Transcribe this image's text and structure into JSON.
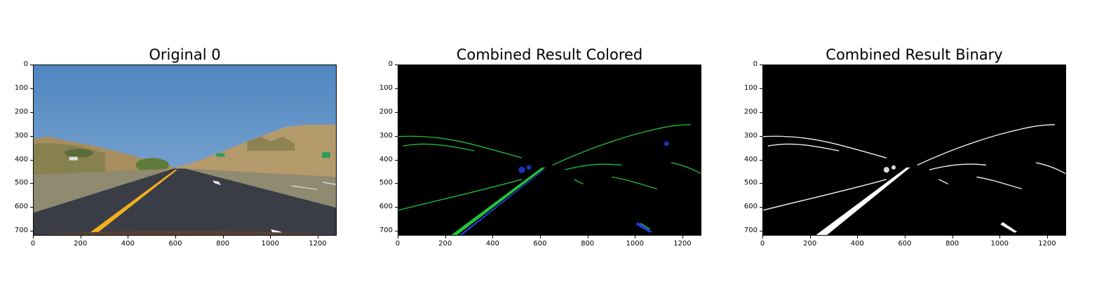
{
  "figure": {
    "panels": [
      {
        "title": "Original 0"
      },
      {
        "title": "Combined Result Colored"
      },
      {
        "title": "Combined Result Binary"
      }
    ],
    "y_ticks": [
      "0",
      "100",
      "200",
      "300",
      "400",
      "500",
      "600",
      "700"
    ],
    "x_ticks": [
      "0",
      "200",
      "400",
      "600",
      "800",
      "1000",
      "1200"
    ],
    "image_width": 1280,
    "image_height": 720,
    "colors": {
      "sky": "#5b8fc4",
      "road": "#3a3d45",
      "hills": "#b59a6c",
      "lane_yellow": "#f2b01e",
      "edge_green": "#22c53a",
      "edge_blue": "#1f3fd6",
      "binary_white": "#ffffff",
      "background_black": "#000000"
    }
  }
}
